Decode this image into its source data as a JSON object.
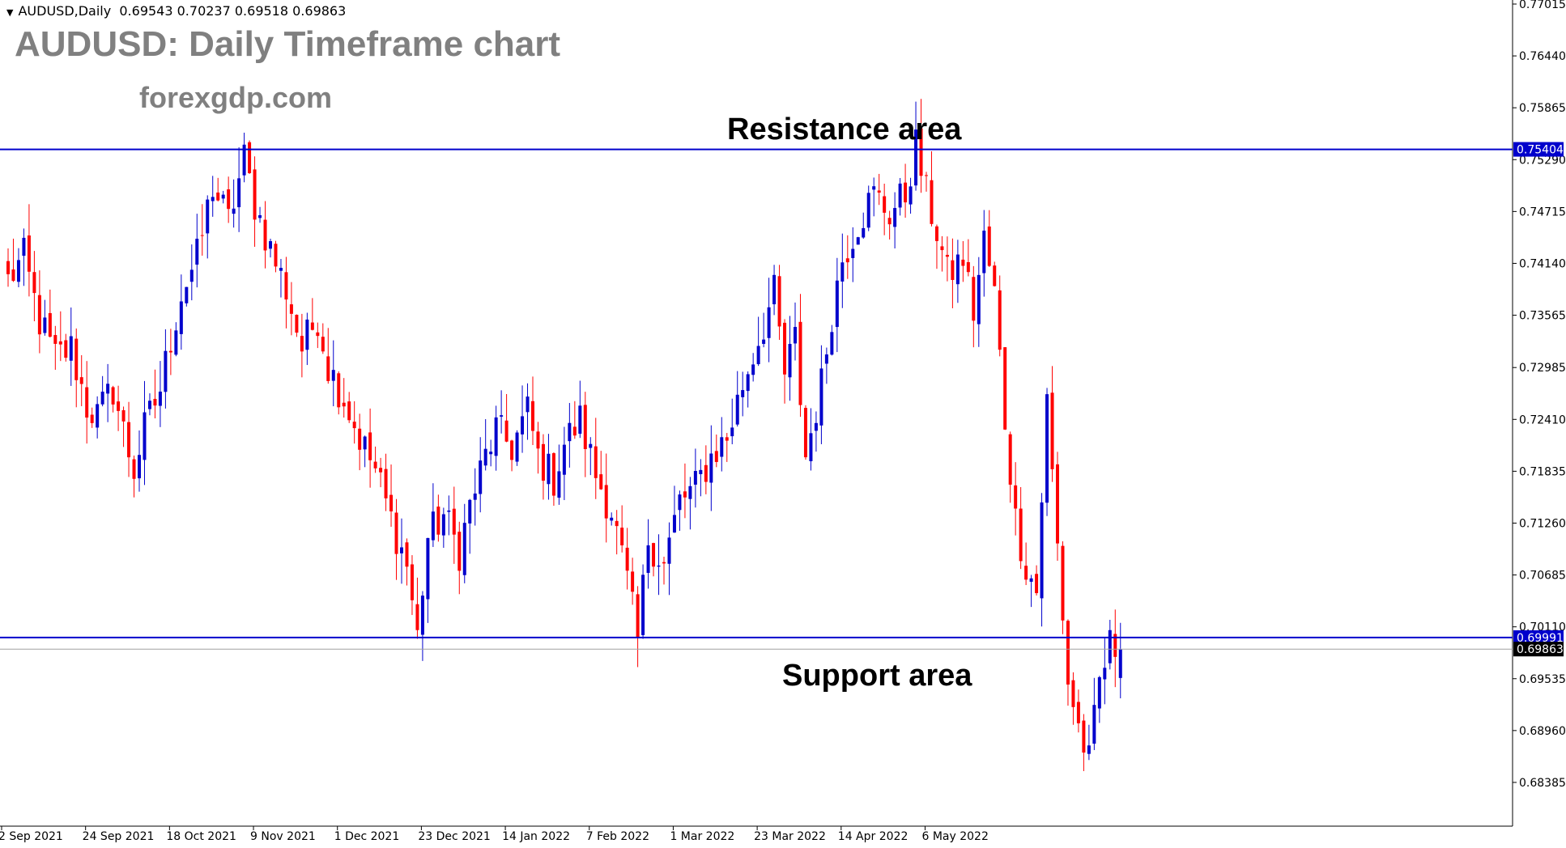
{
  "header": {
    "symbol": "AUDUSD,Daily",
    "ohlc": "0.69543 0.70237 0.69518 0.69863",
    "menu_icon": "triangle-down-icon"
  },
  "title": "AUDUSD: Daily Timeframe chart",
  "watermark": "forexgdp.com",
  "annotations": {
    "resistance": "Resistance area",
    "support": "Support area"
  },
  "colors": {
    "bull": "#0000cc",
    "bear": "#ff0000",
    "level_line": "#0000cc",
    "label_bg": "#0000cc",
    "price_label_bg": "#000000",
    "axis": "#000000",
    "text_gray": "#808080"
  },
  "chart_data": {
    "type": "candlestick",
    "symbol": "AUDUSD",
    "timeframe": "Daily",
    "ylim": [
      0.679,
      0.77015
    ],
    "y_ticks": [
      "0.77015",
      "0.76440",
      "0.75865",
      "0.75290",
      "0.74715",
      "0.74140",
      "0.73565",
      "0.72985",
      "0.72410",
      "0.71835",
      "0.71260",
      "0.70685",
      "0.70110",
      "0.69535",
      "0.68960",
      "0.68385"
    ],
    "x_ticks": [
      "2 Sep 2021",
      "24 Sep 2021",
      "18 Oct 2021",
      "9 Nov 2021",
      "1 Dec 2021",
      "23 Dec 2021",
      "14 Jan 2022",
      "7 Feb 2022",
      "1 Mar 2022",
      "23 Mar 2022",
      "14 Apr 2022",
      "6 May 2022"
    ],
    "levels": [
      {
        "name": "Resistance area",
        "value": 0.75404,
        "label": "0.75404"
      },
      {
        "name": "Support area",
        "value": 0.69991,
        "label": "0.69991"
      }
    ],
    "current_price": {
      "value": 0.69863,
      "label": "0.69863"
    },
    "close_path": [
      [
        0,
        0.7395
      ],
      [
        3,
        0.742
      ],
      [
        6,
        0.735
      ],
      [
        9,
        0.731
      ],
      [
        12,
        0.732
      ],
      [
        15,
        0.7255
      ],
      [
        17,
        0.7245
      ],
      [
        20,
        0.7275
      ],
      [
        23,
        0.7205
      ],
      [
        24,
        0.7185
      ],
      [
        26,
        0.723
      ],
      [
        29,
        0.7275
      ],
      [
        31,
        0.733
      ],
      [
        33,
        0.738
      ],
      [
        36,
        0.742
      ],
      [
        39,
        0.75
      ],
      [
        42,
        0.746
      ],
      [
        45,
        0.753
      ],
      [
        47,
        0.748
      ],
      [
        50,
        0.743
      ],
      [
        53,
        0.7385
      ],
      [
        56,
        0.732
      ],
      [
        59,
        0.7355
      ],
      [
        61,
        0.73
      ],
      [
        64,
        0.7265
      ],
      [
        67,
        0.722
      ],
      [
        70,
        0.7185
      ],
      [
        73,
        0.713
      ],
      [
        76,
        0.708
      ],
      [
        78,
        0.7
      ],
      [
        80,
        0.711
      ],
      [
        83,
        0.7135
      ],
      [
        86,
        0.7095
      ],
      [
        88,
        0.7145
      ],
      [
        91,
        0.72
      ],
      [
        93,
        0.723
      ],
      [
        96,
        0.721
      ],
      [
        99,
        0.725
      ],
      [
        101,
        0.72
      ],
      [
        104,
        0.7175
      ],
      [
        106,
        0.7215
      ],
      [
        109,
        0.724
      ],
      [
        112,
        0.718
      ],
      [
        115,
        0.714
      ],
      [
        118,
        0.706
      ],
      [
        120,
        0.6995
      ],
      [
        122,
        0.711
      ],
      [
        125,
        0.708
      ],
      [
        128,
        0.715
      ],
      [
        131,
        0.7165
      ],
      [
        134,
        0.72
      ],
      [
        137,
        0.722
      ],
      [
        140,
        0.728
      ],
      [
        143,
        0.733
      ],
      [
        146,
        0.738
      ],
      [
        148,
        0.729
      ],
      [
        150,
        0.733
      ],
      [
        152,
        0.72
      ],
      [
        155,
        0.728
      ],
      [
        157,
        0.736
      ],
      [
        159,
        0.742
      ],
      [
        162,
        0.746
      ],
      [
        165,
        0.749
      ],
      [
        168,
        0.747
      ],
      [
        171,
        0.749
      ],
      [
        173,
        0.7545
      ],
      [
        175,
        0.749
      ],
      [
        177,
        0.745
      ],
      [
        179,
        0.74
      ],
      [
        182,
        0.742
      ],
      [
        184,
        0.736
      ],
      [
        186,
        0.744
      ],
      [
        188,
        0.738
      ],
      [
        190,
        0.724
      ],
      [
        192,
        0.713
      ],
      [
        194,
        0.708
      ],
      [
        196,
        0.705
      ],
      [
        198,
        0.726
      ],
      [
        200,
        0.71
      ],
      [
        202,
        0.695
      ],
      [
        204,
        0.69
      ],
      [
        206,
        0.686
      ],
      [
        208,
        0.695
      ],
      [
        210,
        0.699
      ],
      [
        212,
        0.6986
      ]
    ]
  }
}
